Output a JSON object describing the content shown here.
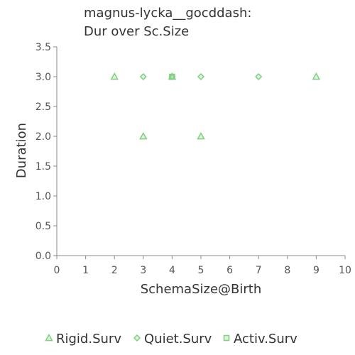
{
  "chart_data": {
    "type": "scatter",
    "title": [
      "magnus-lycka__gocddash:",
      "Dur over Sc.Size"
    ],
    "xlabel": "SchemaSize@Birth",
    "ylabel": "Duration",
    "xlim": [
      0,
      10
    ],
    "ylim": [
      0,
      3.5
    ],
    "xticks": [
      "0",
      "1",
      "2",
      "3",
      "4",
      "5",
      "6",
      "7",
      "8",
      "9",
      "10"
    ],
    "yticks": [
      "0.0",
      "0.5",
      "1.0",
      "1.5",
      "2.0",
      "2.5",
      "3.0",
      "3.5"
    ],
    "grid": false,
    "legend_position": "bottom",
    "series": [
      {
        "name": "Rigid.Surv",
        "marker": "triangle",
        "color": "#7fd07f",
        "points": [
          [
            2,
            3
          ],
          [
            3,
            2
          ],
          [
            5,
            2
          ],
          [
            9,
            3
          ],
          [
            4,
            3
          ]
        ]
      },
      {
        "name": "Quiet.Surv",
        "marker": "diamond",
        "color": "#7fd07f",
        "points": [
          [
            3,
            3
          ],
          [
            4,
            3
          ],
          [
            5,
            3
          ],
          [
            7,
            3
          ]
        ]
      },
      {
        "name": "Activ.Surv",
        "marker": "square",
        "color": "#7fd07f",
        "points": [
          [
            4,
            3
          ]
        ]
      }
    ]
  }
}
